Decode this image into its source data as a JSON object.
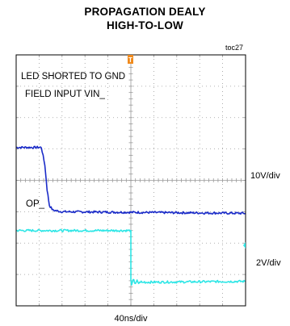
{
  "title_lines": [
    "PROPAGATION DEALY",
    "HIGH-TO-LOW"
  ],
  "figure_id": "toc27",
  "labels": {
    "led_shorted": "LED SHORTED TO GND",
    "field_input": "FIELD INPUT VIN_",
    "op": "OP_",
    "ch1_scale": "10V/div",
    "ch2_scale": "2V/div",
    "time_scale": "40ns/div"
  },
  "trigger_marker": "T",
  "colors": {
    "field_input_trace": "#1a2bc8",
    "op_trace": "#2ee6e6",
    "grid": "#9a9a9a",
    "trigger_marker": "#f08a1c",
    "frame": "#000000"
  },
  "chart_data": {
    "type": "line",
    "title": "PROPAGATION DEALY HIGH-TO-LOW",
    "xlabel": "40ns/div",
    "x_unit": "ns",
    "grid": true,
    "divisions": {
      "horizontal": 10,
      "vertical": 8
    },
    "series": [
      {
        "name": "FIELD INPUT VIN_",
        "scale": "10V/div",
        "points_div": [
          [
            0.0,
            5.05
          ],
          [
            1.1,
            5.05
          ],
          [
            1.25,
            4.5
          ],
          [
            1.35,
            3.7
          ],
          [
            1.45,
            3.2
          ],
          [
            1.6,
            3.05
          ],
          [
            2.0,
            3.0
          ],
          [
            10.0,
            2.95
          ]
        ]
      },
      {
        "name": "OP_",
        "scale": "2V/div",
        "points_div": [
          [
            0.0,
            2.4
          ],
          [
            5.0,
            2.4
          ],
          [
            5.0,
            0.8
          ],
          [
            5.2,
            0.75
          ],
          [
            10.0,
            0.78
          ]
        ]
      }
    ]
  }
}
